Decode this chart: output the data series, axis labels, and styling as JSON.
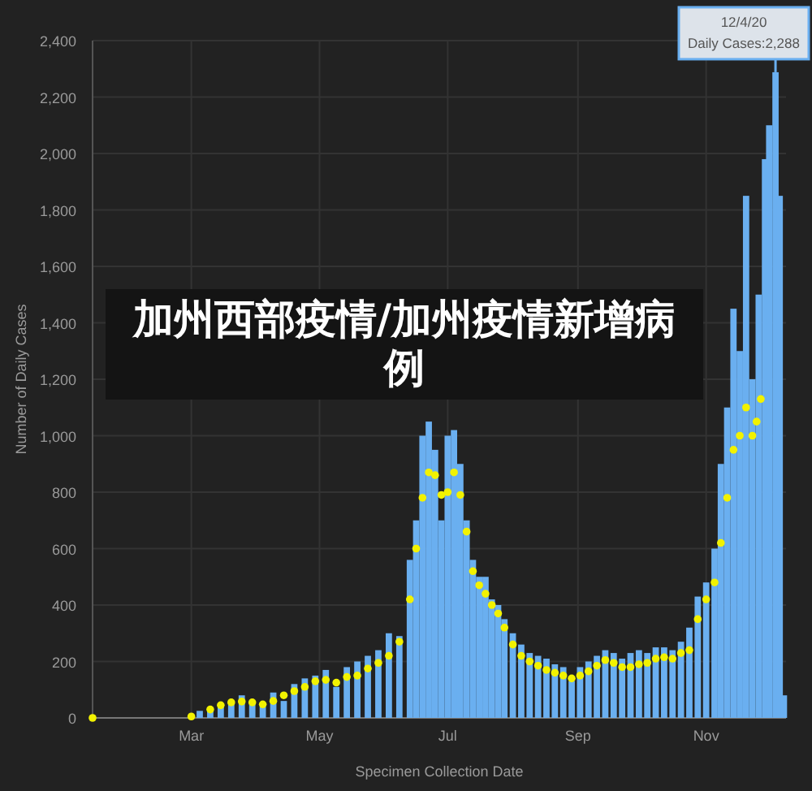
{
  "chart_data": {
    "type": "bar",
    "title": "加州西部疫情/加州疫情新增病例",
    "xlabel": "Specimen Collection Date",
    "ylabel": "Number of Daily Cases",
    "xlim": [
      "--01-14",
      "--12-09"
    ],
    "xticks": [
      {
        "value": "--03-01",
        "label": "Mar"
      },
      {
        "value": "--05-01",
        "label": "May"
      },
      {
        "value": "--07-01",
        "label": "Jul"
      },
      {
        "value": "--09-01",
        "label": "Sep"
      },
      {
        "value": "--11-01",
        "label": "Nov"
      }
    ],
    "ylim": [
      0,
      2400
    ],
    "yticks": [
      0,
      200,
      400,
      600,
      800,
      {
        "value": 1000,
        "label": "1,000"
      },
      {
        "value": 1200,
        "label": "1,200"
      },
      {
        "value": 1400,
        "label": "1,400"
      },
      {
        "value": 1600,
        "label": "1,600"
      },
      {
        "value": 1800,
        "label": "1,800"
      },
      {
        "value": 2000,
        "label": "2,000"
      },
      {
        "value": 2200,
        "label": "2,200"
      },
      {
        "value": 2400,
        "label": "2,400"
      }
    ],
    "grid": true,
    "marker": "circle",
    "annotations": [
      "12/4/20",
      {
        "text": "Daily Cases:2,288",
        "x": "--12-04",
        "y": 2288
      }
    ],
    "series": [
      {
        "color": "#6aaff0",
        "x": [
          "--03-05",
          "--03-10",
          "--03-15",
          "--03-20",
          "--03-25",
          "--03-30",
          "--04-04",
          "--04-09",
          "--04-14",
          "--04-19",
          "--04-24",
          "--04-29",
          "--05-04",
          "--05-09",
          "--05-14",
          "--05-19",
          "--05-24",
          "--05-29",
          "--06-03",
          "--06-08",
          "--06-13",
          "--06-16",
          "--06-19",
          "--06-22",
          "--06-25",
          "--06-28",
          "--07-01",
          "--07-04",
          "--07-07",
          "--07-10",
          "--07-13",
          "--07-16",
          "--07-19",
          "--07-22",
          "--07-25",
          "--07-28",
          "--08-01",
          "--08-05",
          "--08-09",
          "--08-13",
          "--08-17",
          "--08-21",
          "--08-25",
          "--08-29",
          "--09-02",
          "--09-06",
          "--09-10",
          "--09-14",
          "--09-18",
          "--09-22",
          "--09-26",
          "--09-30",
          "--10-04",
          "--10-08",
          "--10-12",
          "--10-16",
          "--10-20",
          "--10-24",
          "--10-28",
          "--11-01",
          "--11-05",
          "--11-08",
          "--11-11",
          "--11-14",
          "--11-17",
          "--11-20",
          "--11-23",
          "--11-26",
          "--11-29",
          "--12-01",
          "--12-04",
          "--12-06",
          "--12-08"
        ],
        "values": [
          25,
          35,
          50,
          60,
          80,
          50,
          40,
          90,
          60,
          120,
          140,
          150,
          170,
          110,
          180,
          200,
          220,
          240,
          300,
          290,
          560,
          700,
          1000,
          1050,
          950,
          700,
          1000,
          1020,
          900,
          700,
          560,
          500,
          500,
          420,
          400,
          350,
          300,
          260,
          230,
          220,
          210,
          190,
          180,
          130,
          180,
          200,
          220,
          240,
          230,
          210,
          230,
          240,
          230,
          250,
          250,
          240,
          270,
          320,
          430,
          480,
          600,
          900,
          1100,
          1450,
          1300,
          1850,
          1200,
          1500,
          1980,
          2100,
          2288,
          1850,
          80
        ]
      },
      {
        "type": "scatter",
        "color": "#f2f200",
        "x": [
          "--01-14",
          "--03-01",
          "--03-10",
          "--03-15",
          "--03-20",
          "--03-25",
          "--03-30",
          "--04-04",
          "--04-09",
          "--04-14",
          "--04-19",
          "--04-24",
          "--04-29",
          "--05-04",
          "--05-09",
          "--05-14",
          "--05-19",
          "--05-24",
          "--05-29",
          "--06-03",
          "--06-08",
          "--06-13",
          "--06-16",
          "--06-19",
          "--06-22",
          "--06-25",
          "--06-28",
          "--07-01",
          "--07-04",
          "--07-07",
          "--07-10",
          "--07-13",
          "--07-16",
          "--07-19",
          "--07-22",
          "--07-25",
          "--07-28",
          "--08-01",
          "--08-05",
          "--08-09",
          "--08-13",
          "--08-17",
          "--08-21",
          "--08-25",
          "--08-29",
          "--09-02",
          "--09-06",
          "--09-10",
          "--09-14",
          "--09-18",
          "--09-22",
          "--09-26",
          "--09-30",
          "--10-04",
          "--10-08",
          "--10-12",
          "--10-16",
          "--10-20",
          "--10-24",
          "--10-28",
          "--11-01",
          "--11-05",
          "--11-08",
          "--11-11",
          "--11-14",
          "--11-17",
          "--11-20",
          "--11-23",
          "--11-25",
          "--11-27"
        ],
        "values": [
          0,
          5,
          30,
          45,
          55,
          58,
          55,
          48,
          60,
          80,
          95,
          110,
          130,
          135,
          125,
          145,
          150,
          175,
          195,
          220,
          270,
          420,
          600,
          780,
          870,
          860,
          790,
          800,
          870,
          790,
          660,
          520,
          470,
          440,
          400,
          370,
          320,
          260,
          220,
          200,
          185,
          170,
          160,
          150,
          140,
          150,
          165,
          185,
          205,
          195,
          180,
          180,
          190,
          195,
          210,
          215,
          210,
          230,
          240,
          350,
          420,
          480,
          620,
          780,
          950,
          1000,
          1100,
          1000,
          1050,
          1130
        ]
      }
    ]
  }
}
